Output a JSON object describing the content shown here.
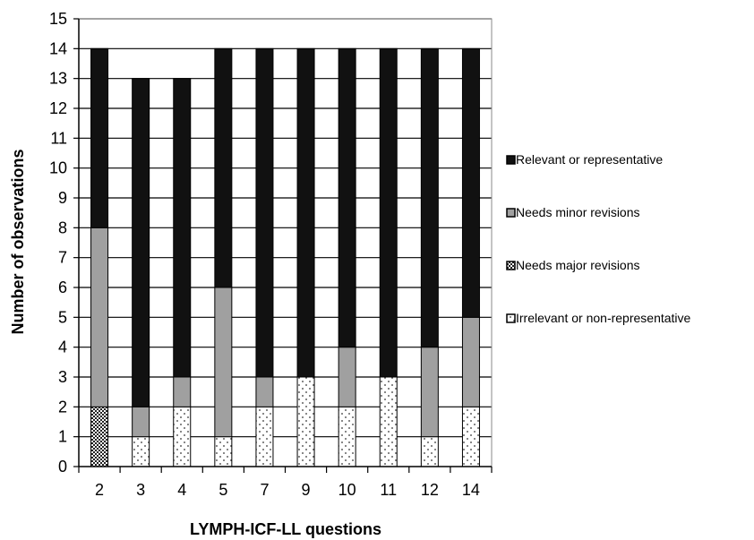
{
  "chart_data": {
    "type": "bar",
    "stacked": true,
    "xlabel": "LYMPH-ICF-LL questions",
    "ylabel": "Number of observations",
    "ylim": [
      0,
      15
    ],
    "yticks": [
      0,
      1,
      2,
      3,
      4,
      5,
      6,
      7,
      8,
      9,
      10,
      11,
      12,
      13,
      14,
      15
    ],
    "grid": "horizontal",
    "legend_position": "right",
    "categories": [
      "2",
      "3",
      "4",
      "5",
      "7",
      "9",
      "10",
      "11",
      "12",
      "14"
    ],
    "series": [
      {
        "name": "Irrelevant or non-representative",
        "pattern": "dotted",
        "color": "#ffffff",
        "values": [
          0,
          1,
          2,
          1,
          2,
          3,
          2,
          3,
          1,
          2
        ]
      },
      {
        "name": "Needs major revisions",
        "pattern": "crosshatch",
        "color": "#5a5a5a",
        "values": [
          2,
          0,
          0,
          0,
          0,
          0,
          0,
          0,
          0,
          0
        ]
      },
      {
        "name": "Needs minor revisions",
        "pattern": "solid",
        "color": "#a0a0a0",
        "values": [
          6,
          1,
          1,
          5,
          1,
          0,
          2,
          0,
          3,
          3
        ]
      },
      {
        "name": "Relevant or representative",
        "pattern": "solid",
        "color": "#111111",
        "values": [
          6,
          11,
          10,
          8,
          11,
          11,
          10,
          11,
          10,
          9
        ]
      }
    ],
    "legend_order": [
      "Relevant or representative",
      "Needs minor revisions",
      "Needs major revisions",
      "Irrelevant or non-representative"
    ]
  }
}
